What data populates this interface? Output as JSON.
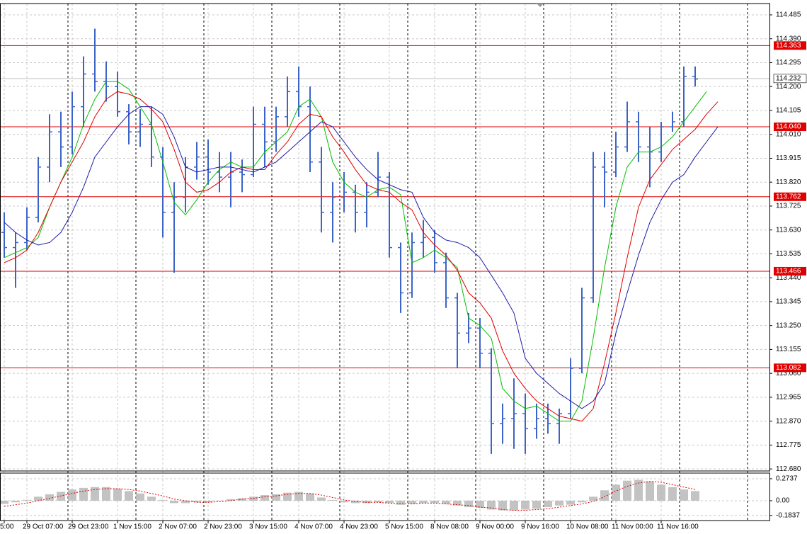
{
  "chart_data": [
    {
      "type": "ohlc",
      "color": "#3c64c8",
      "categories": [
        "5:00",
        null,
        "29 Oct 07:00",
        null,
        null,
        null,
        "29 Oct 23:00",
        null,
        null,
        null,
        "1 Nov 15:00",
        null,
        null,
        null,
        "2 Nov 07:00",
        null,
        null,
        null,
        "2 Nov 23:00",
        null,
        null,
        null,
        "3 Nov 15:00",
        null,
        null,
        null,
        "4 Nov 07:00",
        null,
        null,
        null,
        "4 Nov 23:00",
        null,
        null,
        null,
        "5 Nov 15:00",
        null,
        null,
        null,
        "8 Nov 08:00",
        null,
        null,
        null,
        "9 Nov 00:00",
        null,
        null,
        null,
        "9 Nov 16:00",
        null,
        null,
        null,
        "10 Nov 08:00",
        null,
        null,
        null,
        "11 Nov 00:00",
        null,
        null,
        null,
        "11 Nov 16:00",
        null,
        null,
        null,
        null,
        null
      ],
      "open": [
        113.62,
        113.56,
        113.58,
        113.68,
        113.88,
        114.02,
        113.96,
        114.12,
        114.25,
        114.22,
        114.2,
        114.1,
        114.02,
        114.05,
        113.92,
        113.7,
        113.76,
        113.88,
        113.92,
        113.86,
        113.84,
        113.86,
        113.85,
        114.05,
        113.98,
        114.08,
        114.18,
        114.12,
        113.9,
        113.7,
        113.76,
        113.78,
        113.7,
        113.78,
        113.84,
        113.56,
        113.38,
        113.58,
        113.6,
        113.5,
        113.36,
        113.22,
        113.24,
        113.14,
        112.86,
        112.88,
        112.9,
        112.84,
        112.88,
        112.86,
        112.9,
        113.08,
        113.36,
        113.88,
        113.86,
        113.96,
        114.06,
        113.96,
        113.94,
        114.04,
        114.06,
        114.24,
        null,
        null
      ],
      "high": [
        113.7,
        113.62,
        113.72,
        113.92,
        114.09,
        114.1,
        114.18,
        114.32,
        114.43,
        114.3,
        114.26,
        114.13,
        114.11,
        114.12,
        113.96,
        113.82,
        113.92,
        113.98,
        113.99,
        113.94,
        113.94,
        113.91,
        114.12,
        114.12,
        114.12,
        114.24,
        114.28,
        114.2,
        113.96,
        113.82,
        113.86,
        113.81,
        113.82,
        113.94,
        113.86,
        113.58,
        113.62,
        113.67,
        113.63,
        113.54,
        113.38,
        113.3,
        113.28,
        113.16,
        112.94,
        113.04,
        112.98,
        112.94,
        112.94,
        112.92,
        113.12,
        113.4,
        113.94,
        113.94,
        114.02,
        114.14,
        114.1,
        114.04,
        114.06,
        114.1,
        114.28,
        114.28,
        null,
        null
      ],
      "low": [
        113.52,
        113.4,
        113.55,
        113.66,
        113.82,
        113.88,
        113.93,
        114.04,
        114.18,
        114.14,
        114.08,
        113.97,
        113.96,
        113.88,
        113.6,
        113.46,
        113.7,
        113.83,
        113.81,
        113.78,
        113.72,
        113.78,
        113.84,
        113.88,
        113.94,
        114.04,
        114.08,
        113.86,
        113.62,
        113.58,
        113.7,
        113.62,
        113.64,
        113.76,
        113.52,
        113.3,
        113.36,
        113.52,
        113.46,
        113.32,
        113.08,
        113.18,
        113.08,
        112.74,
        112.78,
        112.76,
        112.74,
        112.8,
        112.82,
        112.78,
        112.88,
        113.06,
        113.34,
        113.72,
        113.84,
        113.94,
        113.9,
        113.8,
        113.9,
        114.02,
        114.04,
        114.2,
        null,
        null
      ],
      "close": [
        113.56,
        113.58,
        113.68,
        113.88,
        114.02,
        113.96,
        114.12,
        114.25,
        114.22,
        114.2,
        114.1,
        114.02,
        114.05,
        113.92,
        113.7,
        113.76,
        113.88,
        113.92,
        113.86,
        113.84,
        113.86,
        113.85,
        114.05,
        113.98,
        114.08,
        114.18,
        114.12,
        113.9,
        113.7,
        113.76,
        113.78,
        113.7,
        113.78,
        113.84,
        113.56,
        113.38,
        113.58,
        113.6,
        113.5,
        113.36,
        113.22,
        113.24,
        113.14,
        112.86,
        112.88,
        112.9,
        112.84,
        112.88,
        112.86,
        112.9,
        113.08,
        113.36,
        113.88,
        113.86,
        113.96,
        114.06,
        113.96,
        113.94,
        114.04,
        114.06,
        114.24,
        114.23,
        null,
        null
      ],
      "series": [
        {
          "color": "#00c000",
          "values": [
            113.52,
            113.54,
            113.56,
            113.6,
            113.72,
            113.82,
            113.92,
            114.05,
            114.15,
            114.22,
            114.22,
            114.19,
            114.12,
            114.05,
            113.9,
            113.74,
            113.69,
            113.75,
            113.82,
            113.87,
            113.9,
            113.88,
            113.88,
            113.94,
            113.98,
            114.02,
            114.12,
            114.15,
            114.08,
            113.9,
            113.82,
            113.78,
            113.76,
            113.79,
            113.8,
            113.77,
            113.5,
            113.52,
            113.55,
            113.52,
            113.48,
            113.28,
            113.25,
            113.2,
            113.0,
            112.95,
            112.92,
            112.93,
            112.9,
            112.87,
            112.87,
            112.95,
            113.2,
            113.48,
            113.72,
            113.88,
            113.94,
            113.94,
            113.96,
            114.0,
            114.06,
            114.12,
            114.18,
            null
          ]
        },
        {
          "color": "#e00000",
          "values": [
            113.5,
            113.52,
            113.55,
            113.62,
            113.72,
            113.82,
            113.9,
            113.98,
            114.08,
            114.15,
            114.18,
            114.17,
            114.15,
            114.11,
            114.06,
            113.95,
            113.82,
            113.78,
            113.79,
            113.82,
            113.86,
            113.88,
            113.87,
            113.87,
            113.93,
            113.98,
            114.05,
            114.09,
            114.08,
            114.0,
            113.94,
            113.87,
            113.81,
            113.79,
            113.78,
            113.74,
            113.71,
            113.62,
            113.57,
            113.53,
            113.47,
            113.38,
            113.34,
            113.28,
            113.15,
            113.06,
            113.0,
            112.95,
            112.92,
            112.89,
            112.88,
            112.87,
            112.92,
            113.1,
            113.3,
            113.52,
            113.72,
            113.83,
            113.89,
            113.95,
            113.99,
            114.03,
            114.09,
            114.14
          ]
        },
        {
          "color": "#1a1aa8",
          "values": [
            113.66,
            113.62,
            113.59,
            113.57,
            113.58,
            113.62,
            113.7,
            113.8,
            113.92,
            113.98,
            114.04,
            114.09,
            114.12,
            114.12,
            114.09,
            114.0,
            113.88,
            113.86,
            113.87,
            113.88,
            113.88,
            113.87,
            113.86,
            113.88,
            113.9,
            113.94,
            113.98,
            114.02,
            114.06,
            114.04,
            113.98,
            113.92,
            113.87,
            113.83,
            113.81,
            113.79,
            113.78,
            113.68,
            113.62,
            113.59,
            113.58,
            113.56,
            113.52,
            113.45,
            113.38,
            113.3,
            113.12,
            113.06,
            113.02,
            112.98,
            112.95,
            112.92,
            112.95,
            113.02,
            113.22,
            113.38,
            113.53,
            113.66,
            113.75,
            113.82,
            113.85,
            113.92,
            113.98,
            114.04
          ]
        }
      ],
      "ylim": [
        112.672,
        114.53
      ],
      "yticks": [
        114.485,
        {
          "value": 114.39,
          "label": "114.390"
        },
        114.295,
        {
          "value": 114.2,
          "label": "114.200"
        },
        114.105,
        {
          "value": 114.01,
          "label": "114.010"
        },
        113.915,
        {
          "value": 113.82,
          "label": "113.820"
        },
        113.725,
        {
          "value": 113.63,
          "label": "113.630"
        },
        113.535,
        {
          "value": 113.44,
          "label": "113.440"
        },
        113.345,
        {
          "value": 113.25,
          "label": "113.250"
        },
        113.155,
        {
          "value": 113.06,
          "label": "113.060"
        },
        112.965,
        {
          "value": 112.87,
          "label": "112.870"
        },
        112.775,
        {
          "value": 112.68,
          "label": "112.680"
        }
      ],
      "levels": [
        114.363,
        {
          "value": 114.04,
          "label": "114.040"
        },
        113.762,
        113.466,
        113.082
      ],
      "level_color": "#e00000",
      "last_price": 114.232,
      "grid": true
    },
    {
      "type": "macd",
      "series": [
        {
          "color": "#b4b4b4",
          "values": [
            -0.04,
            -0.02,
            0.01,
            0.05,
            0.08,
            0.11,
            0.14,
            0.16,
            0.17,
            0.17,
            0.15,
            0.12,
            0.09,
            0.05,
            0.01,
            -0.03,
            -0.03,
            -0.02,
            -0.02,
            0.0,
            0.02,
            0.03,
            0.05,
            0.07,
            0.08,
            0.1,
            0.11,
            0.09,
            0.04,
            0.01,
            -0.02,
            -0.03,
            -0.03,
            -0.02,
            -0.03,
            -0.05,
            -0.04,
            -0.03,
            -0.03,
            -0.04,
            -0.06,
            -0.08,
            -0.09,
            -0.11,
            -0.12,
            -0.12,
            -0.11,
            -0.1,
            -0.08,
            -0.06,
            -0.05,
            -0.02,
            0.05,
            0.13,
            0.2,
            0.25,
            0.26,
            0.24,
            0.2,
            0.17,
            0.14,
            0.12,
            null,
            null
          ]
        },
        {
          "color": "#e00000",
          "values": [
            -0.07,
            -0.05,
            -0.03,
            0.0,
            0.03,
            0.06,
            0.09,
            0.12,
            0.14,
            0.15,
            0.15,
            0.14,
            0.12,
            0.09,
            0.06,
            0.02,
            0.0,
            -0.02,
            -0.02,
            -0.01,
            0.0,
            0.02,
            0.03,
            0.05,
            0.06,
            0.08,
            0.09,
            0.09,
            0.07,
            0.04,
            0.01,
            -0.01,
            -0.02,
            -0.02,
            -0.03,
            -0.04,
            -0.04,
            -0.03,
            -0.03,
            -0.04,
            -0.05,
            -0.06,
            -0.08,
            -0.09,
            -0.11,
            -0.12,
            -0.12,
            -0.11,
            -0.1,
            -0.08,
            -0.06,
            -0.04,
            -0.01,
            0.05,
            0.12,
            0.18,
            0.22,
            0.24,
            0.23,
            0.2,
            0.17,
            0.14,
            null,
            null
          ]
        }
      ],
      "ylim": [
        -0.247,
        0.344
      ],
      "yticks": [
        0.2737,
        {
          "value": 0,
          "label": "0.00"
        },
        -0.1837
      ]
    }
  ]
}
